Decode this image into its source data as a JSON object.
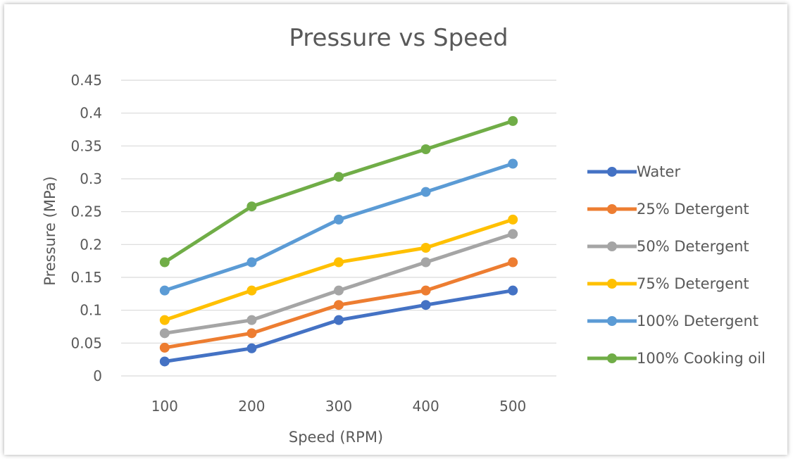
{
  "chart_data": {
    "type": "line",
    "title": "Pressure vs Speed",
    "xlabel": "Speed (RPM)",
    "ylabel": "Pressure (MPa)",
    "x": [
      100,
      200,
      300,
      400,
      500
    ],
    "ylim": [
      0,
      0.45
    ],
    "yticks": [
      0,
      0.05,
      0.1,
      0.15,
      0.2,
      0.25,
      0.3,
      0.35,
      0.4,
      0.45
    ],
    "ytick_labels": [
      "0",
      "0.05",
      "0.1",
      "0.15",
      "0.2",
      "0.25",
      "0.3",
      "0.35",
      "0.4",
      "0.45"
    ],
    "grid": true,
    "legend": "right",
    "series": [
      {
        "name": "Water",
        "color": "#4472c4",
        "values": [
          0.022,
          0.042,
          0.085,
          0.108,
          0.13
        ]
      },
      {
        "name": "25% Detergent",
        "color": "#ed7d31",
        "values": [
          0.043,
          0.065,
          0.108,
          0.13,
          0.173
        ]
      },
      {
        "name": "50% Detergent",
        "color": "#a5a5a5",
        "values": [
          0.065,
          0.085,
          0.13,
          0.173,
          0.216
        ]
      },
      {
        "name": "75% Detergent",
        "color": "#ffc000",
        "values": [
          0.085,
          0.13,
          0.173,
          0.195,
          0.238
        ]
      },
      {
        "name": "100% Detergent",
        "color": "#5b9bd5",
        "values": [
          0.13,
          0.173,
          0.238,
          0.28,
          0.323
        ]
      },
      {
        "name": "100% Cooking oil",
        "color": "#70ad47",
        "values": [
          0.173,
          0.258,
          0.303,
          0.345,
          0.388
        ]
      }
    ]
  }
}
